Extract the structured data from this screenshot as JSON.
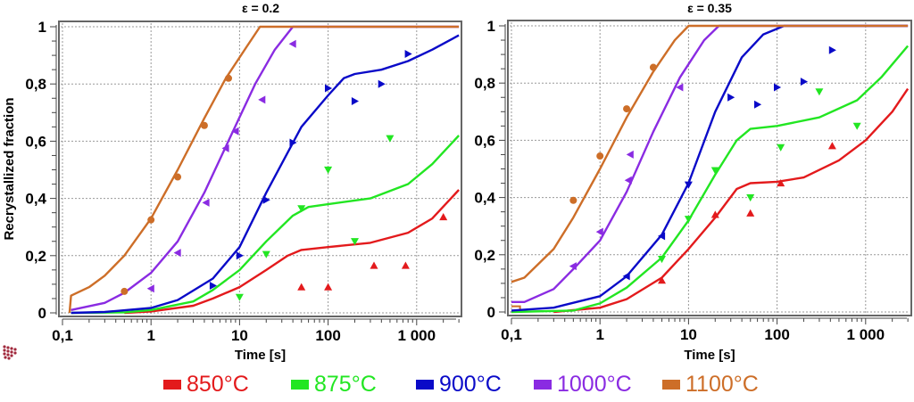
{
  "chart_data": [
    {
      "type": "line",
      "title": "ε = 0.2",
      "xlabel": "Time [s]",
      "ylabel": "Recrystallized fraction",
      "xscale": "log",
      "xlim": [
        0.1,
        3000
      ],
      "ylim": [
        0,
        1
      ],
      "xticks": [
        {
          "v": 0.1,
          "label": "0,1"
        },
        {
          "v": 1,
          "label": "1"
        },
        {
          "v": 10,
          "label": "10"
        },
        {
          "v": 100,
          "label": "100"
        },
        {
          "v": 1000,
          "label": "1 000"
        }
      ],
      "yticks": [
        {
          "v": 0,
          "label": "0"
        },
        {
          "v": 0.2,
          "label": "0,2"
        },
        {
          "v": 0.4,
          "label": "0,4"
        },
        {
          "v": 0.6,
          "label": "0,6"
        },
        {
          "v": 0.8,
          "label": "0,8"
        },
        {
          "v": 1,
          "label": "1"
        }
      ],
      "grid": true,
      "series": [
        {
          "name": "850°C",
          "color": "#e31a1c",
          "marker": "triangle-up",
          "curve": [
            [
              0.5,
              0
            ],
            [
              1,
              0.005
            ],
            [
              3,
              0.025
            ],
            [
              5,
              0.05
            ],
            [
              10,
              0.09
            ],
            [
              20,
              0.15
            ],
            [
              35,
              0.2
            ],
            [
              50,
              0.22
            ],
            [
              100,
              0.23
            ],
            [
              300,
              0.245
            ],
            [
              800,
              0.28
            ],
            [
              1500,
              0.33
            ],
            [
              3000,
              0.43
            ]
          ],
          "points": [
            [
              50,
              0.09
            ],
            [
              100,
              0.09
            ],
            [
              330,
              0.165
            ],
            [
              750,
              0.165
            ],
            [
              2000,
              0.335
            ]
          ]
        },
        {
          "name": "875°C",
          "color": "#22e622",
          "marker": "triangle-down",
          "curve": [
            [
              0.125,
              0
            ],
            [
              0.5,
              0.002
            ],
            [
              1,
              0.01
            ],
            [
              3,
              0.04
            ],
            [
              5,
              0.08
            ],
            [
              10,
              0.15
            ],
            [
              20,
              0.25
            ],
            [
              40,
              0.34
            ],
            [
              60,
              0.37
            ],
            [
              100,
              0.38
            ],
            [
              300,
              0.4
            ],
            [
              800,
              0.45
            ],
            [
              1500,
              0.52
            ],
            [
              3000,
              0.62
            ]
          ],
          "points": [
            [
              10,
              0.055
            ],
            [
              20,
              0.205
            ],
            [
              50,
              0.365
            ],
            [
              100,
              0.5
            ],
            [
              200,
              0.25
            ],
            [
              500,
              0.61
            ]
          ]
        },
        {
          "name": "900°C",
          "color": "#0a0ac8",
          "marker": "triangle-right",
          "curve": [
            [
              0.125,
              0
            ],
            [
              0.3,
              0.003
            ],
            [
              1,
              0.017
            ],
            [
              2,
              0.045
            ],
            [
              5,
              0.12
            ],
            [
              10,
              0.23
            ],
            [
              20,
              0.42
            ],
            [
              50,
              0.65
            ],
            [
              100,
              0.76
            ],
            [
              150,
              0.82
            ],
            [
              200,
              0.835
            ],
            [
              400,
              0.85
            ],
            [
              800,
              0.88
            ],
            [
              1500,
              0.92
            ],
            [
              3000,
              0.97
            ]
          ],
          "points": [
            [
              5,
              0.095
            ],
            [
              10,
              0.2
            ],
            [
              20,
              0.395
            ],
            [
              40,
              0.595
            ],
            [
              100,
              0.785
            ],
            [
              200,
              0.74
            ],
            [
              400,
              0.8
            ],
            [
              800,
              0.905
            ]
          ]
        },
        {
          "name": "1000°C",
          "color": "#8a2be2",
          "marker": "triangle-left",
          "curve": [
            [
              0.125,
              0.01
            ],
            [
              0.3,
              0.035
            ],
            [
              0.5,
              0.07
            ],
            [
              1,
              0.14
            ],
            [
              2,
              0.25
            ],
            [
              4,
              0.42
            ],
            [
              8,
              0.62
            ],
            [
              15,
              0.8
            ],
            [
              25,
              0.92
            ],
            [
              40,
              1
            ],
            [
              3000,
              1
            ]
          ],
          "points": [
            [
              1,
              0.085
            ],
            [
              2,
              0.21
            ],
            [
              4.2,
              0.385
            ],
            [
              7,
              0.575
            ],
            [
              9,
              0.635
            ],
            [
              18,
              0.745
            ],
            [
              40,
              0.94
            ]
          ]
        },
        {
          "name": "1100°C",
          "color": "#cd6e28",
          "marker": "circle",
          "curve": [
            [
              0.12,
              0
            ],
            [
              0.125,
              0.06
            ],
            [
              0.2,
              0.09
            ],
            [
              0.3,
              0.13
            ],
            [
              0.5,
              0.2
            ],
            [
              1,
              0.33
            ],
            [
              2,
              0.5
            ],
            [
              4,
              0.68
            ],
            [
              7,
              0.82
            ],
            [
              12,
              0.93
            ],
            [
              17,
              1
            ],
            [
              3000,
              1
            ]
          ],
          "points": [
            [
              0.5,
              0.075
            ],
            [
              1,
              0.325
            ],
            [
              2,
              0.475
            ],
            [
              4,
              0.655
            ],
            [
              7.5,
              0.82
            ]
          ]
        }
      ]
    },
    {
      "type": "line",
      "title": "ε = 0.35",
      "xlabel": "Time [s]",
      "ylabel": "",
      "xscale": "log",
      "xlim": [
        0.1,
        3000
      ],
      "ylim": [
        0,
        1
      ],
      "xticks": [
        {
          "v": 0.1,
          "label": "0,1"
        },
        {
          "v": 1,
          "label": "1"
        },
        {
          "v": 10,
          "label": "10"
        },
        {
          "v": 100,
          "label": "100"
        },
        {
          "v": 1000,
          "label": "1 000"
        }
      ],
      "yticks": [
        {
          "v": 0,
          "label": "0"
        },
        {
          "v": 0.2,
          "label": "0,2"
        },
        {
          "v": 0.4,
          "label": "0,4"
        },
        {
          "v": 0.6,
          "label": "0,6"
        },
        {
          "v": 0.8,
          "label": "0,8"
        },
        {
          "v": 1,
          "label": "1"
        }
      ],
      "grid": true,
      "series": [
        {
          "name": "850°C",
          "color": "#e31a1c",
          "marker": "triangle-up",
          "curve": [
            [
              0.3,
              0
            ],
            [
              1,
              0.015
            ],
            [
              2,
              0.045
            ],
            [
              5,
              0.12
            ],
            [
              10,
              0.22
            ],
            [
              20,
              0.33
            ],
            [
              35,
              0.43
            ],
            [
              50,
              0.45
            ],
            [
              100,
              0.455
            ],
            [
              200,
              0.47
            ],
            [
              500,
              0.53
            ],
            [
              1000,
              0.6
            ],
            [
              2000,
              0.7
            ],
            [
              3000,
              0.78
            ]
          ],
          "points": [
            [
              5,
              0.11
            ],
            [
              20,
              0.34
            ],
            [
              50,
              0.345
            ],
            [
              110,
              0.45
            ],
            [
              420,
              0.58
            ]
          ]
        },
        {
          "name": "875°C",
          "color": "#22e622",
          "marker": "triangle-down",
          "curve": [
            [
              0.1,
              0
            ],
            [
              0.5,
              0.005
            ],
            [
              1,
              0.03
            ],
            [
              2,
              0.085
            ],
            [
              5,
              0.19
            ],
            [
              10,
              0.32
            ],
            [
              20,
              0.48
            ],
            [
              35,
              0.6
            ],
            [
              50,
              0.64
            ],
            [
              100,
              0.65
            ],
            [
              300,
              0.68
            ],
            [
              800,
              0.74
            ],
            [
              1500,
              0.82
            ],
            [
              3000,
              0.93
            ]
          ],
          "points": [
            [
              5,
              0.185
            ],
            [
              10,
              0.325
            ],
            [
              20,
              0.495
            ],
            [
              50,
              0.4
            ],
            [
              110,
              0.575
            ],
            [
              300,
              0.77
            ],
            [
              800,
              0.65
            ]
          ]
        },
        {
          "name": "900°C",
          "color": "#0a0ac8",
          "marker": "triangle-right",
          "curve": [
            [
              0.1,
              0.005
            ],
            [
              0.3,
              0.015
            ],
            [
              1,
              0.055
            ],
            [
              2,
              0.125
            ],
            [
              5,
              0.27
            ],
            [
              10,
              0.45
            ],
            [
              20,
              0.7
            ],
            [
              40,
              0.89
            ],
            [
              70,
              0.97
            ],
            [
              120,
              1
            ],
            [
              3000,
              1
            ]
          ],
          "points": [
            [
              2,
              0.125,
              "left"
            ],
            [
              5,
              0.265,
              "left"
            ],
            [
              10,
              0.445,
              "down"
            ],
            [
              30,
              0.75
            ],
            [
              60,
              0.725
            ],
            [
              100,
              0.785
            ],
            [
              200,
              0.805
            ],
            [
              420,
              0.915
            ]
          ]
        },
        {
          "name": "1000°C",
          "color": "#8a2be2",
          "marker": "triangle-left",
          "curve": [
            [
              0.1,
              0.035
            ],
            [
              0.14,
              0.035
            ],
            [
              0.3,
              0.08
            ],
            [
              0.5,
              0.15
            ],
            [
              1,
              0.25
            ],
            [
              2,
              0.42
            ],
            [
              4,
              0.63
            ],
            [
              8,
              0.82
            ],
            [
              15,
              0.95
            ],
            [
              22,
              1
            ],
            [
              3000,
              1
            ]
          ],
          "points": [
            [
              0.5,
              0.16
            ],
            [
              1,
              0.28
            ],
            [
              2.1,
              0.46
            ],
            [
              2.2,
              0.55
            ],
            [
              8,
              0.785
            ]
          ]
        },
        {
          "name": "1100°C",
          "color": "#cd6e28",
          "marker": "circle",
          "curve": [
            [
              0.1,
              0.105
            ],
            [
              0.14,
              0.12
            ],
            [
              0.3,
              0.22
            ],
            [
              0.5,
              0.33
            ],
            [
              1,
              0.5
            ],
            [
              2,
              0.68
            ],
            [
              4,
              0.84
            ],
            [
              7,
              0.95
            ],
            [
              10,
              1
            ],
            [
              3000,
              1
            ]
          ],
          "points": [
            [
              0.5,
              0.39
            ],
            [
              1,
              0.545
            ],
            [
              2,
              0.71
            ],
            [
              4,
              0.855
            ]
          ]
        }
      ]
    }
  ],
  "legend": [
    {
      "label": "850°C",
      "color": "#e31a1c"
    },
    {
      "label": "875°C",
      "color": "#22e622"
    },
    {
      "label": "900°C",
      "color": "#0a0ac8"
    },
    {
      "label": "1000°C",
      "color": "#8a2be2"
    },
    {
      "label": "1100°C",
      "color": "#cd6e28"
    }
  ],
  "logo": {
    "icon": "dots-cluster-icon"
  }
}
